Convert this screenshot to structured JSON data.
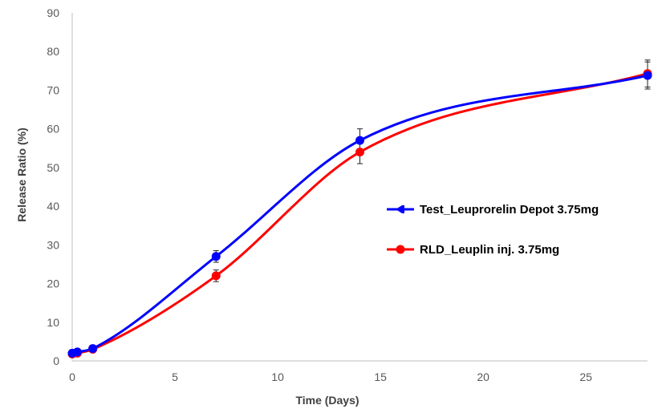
{
  "chart_data": {
    "type": "line",
    "title": "",
    "xlabel": "Time (Days)",
    "ylabel": "Release Ratio (%)",
    "xlim": [
      0,
      28
    ],
    "ylim": [
      0,
      90
    ],
    "xticks": [
      0,
      5,
      10,
      15,
      20,
      25
    ],
    "yticks": [
      0,
      10,
      20,
      30,
      40,
      50,
      60,
      70,
      80,
      90
    ],
    "grid": false,
    "legend_position": "right-center",
    "series": [
      {
        "name": "Test_Leuprorelin Depot 3.75mg",
        "color": "#0000ff",
        "x": [
          0,
          0.25,
          1,
          7,
          14,
          28
        ],
        "y": [
          2.0,
          2.3,
          3.2,
          27.0,
          57.0,
          73.8
        ],
        "error": [
          0.5,
          0.5,
          0.6,
          1.5,
          3.0,
          3.5
        ]
      },
      {
        "name": "RLD_Leuplin inj. 3.75mg",
        "color": "#ff0000",
        "x": [
          0,
          0.25,
          1,
          7,
          14,
          28
        ],
        "y": [
          1.8,
          2.0,
          3.0,
          22.0,
          54.0,
          74.3
        ],
        "error": [
          0.4,
          0.4,
          0.5,
          1.5,
          3.0,
          3.5
        ]
      }
    ]
  }
}
